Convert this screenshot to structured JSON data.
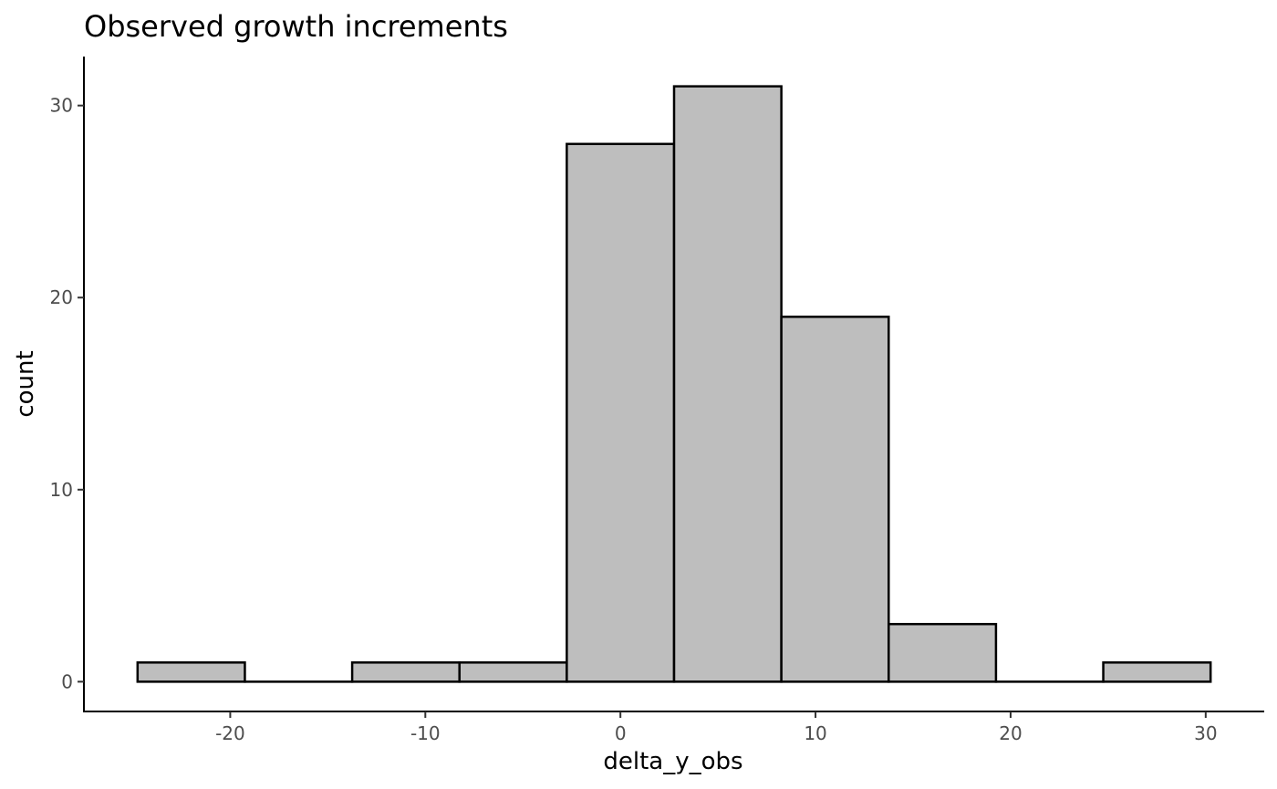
{
  "chart_data": {
    "type": "bar",
    "title": "Observed growth increments",
    "xlabel": "delta_y_obs",
    "ylabel": "count",
    "bin_edges": [
      -24.75,
      -19.25,
      -13.75,
      -8.25,
      -2.75,
      2.75,
      8.25,
      13.75,
      19.25,
      24.75,
      30.25
    ],
    "values": [
      1,
      0,
      1,
      1,
      28,
      31,
      19,
      3,
      0,
      1
    ],
    "xlim": [
      -27.5,
      33
    ],
    "ylim": [
      -1.55,
      32.55
    ],
    "x_ticks": [
      -20,
      -10,
      0,
      10,
      20,
      30
    ],
    "x_tick_labels": [
      "-20",
      "-10",
      "0",
      "10",
      "20",
      "30"
    ],
    "y_ticks": [
      0,
      10,
      20,
      30
    ],
    "y_tick_labels": [
      "0",
      "10",
      "20",
      "30"
    ],
    "bar_fill": "#bebebe",
    "bar_outline": "#000000",
    "grid": false,
    "legend": "none"
  }
}
